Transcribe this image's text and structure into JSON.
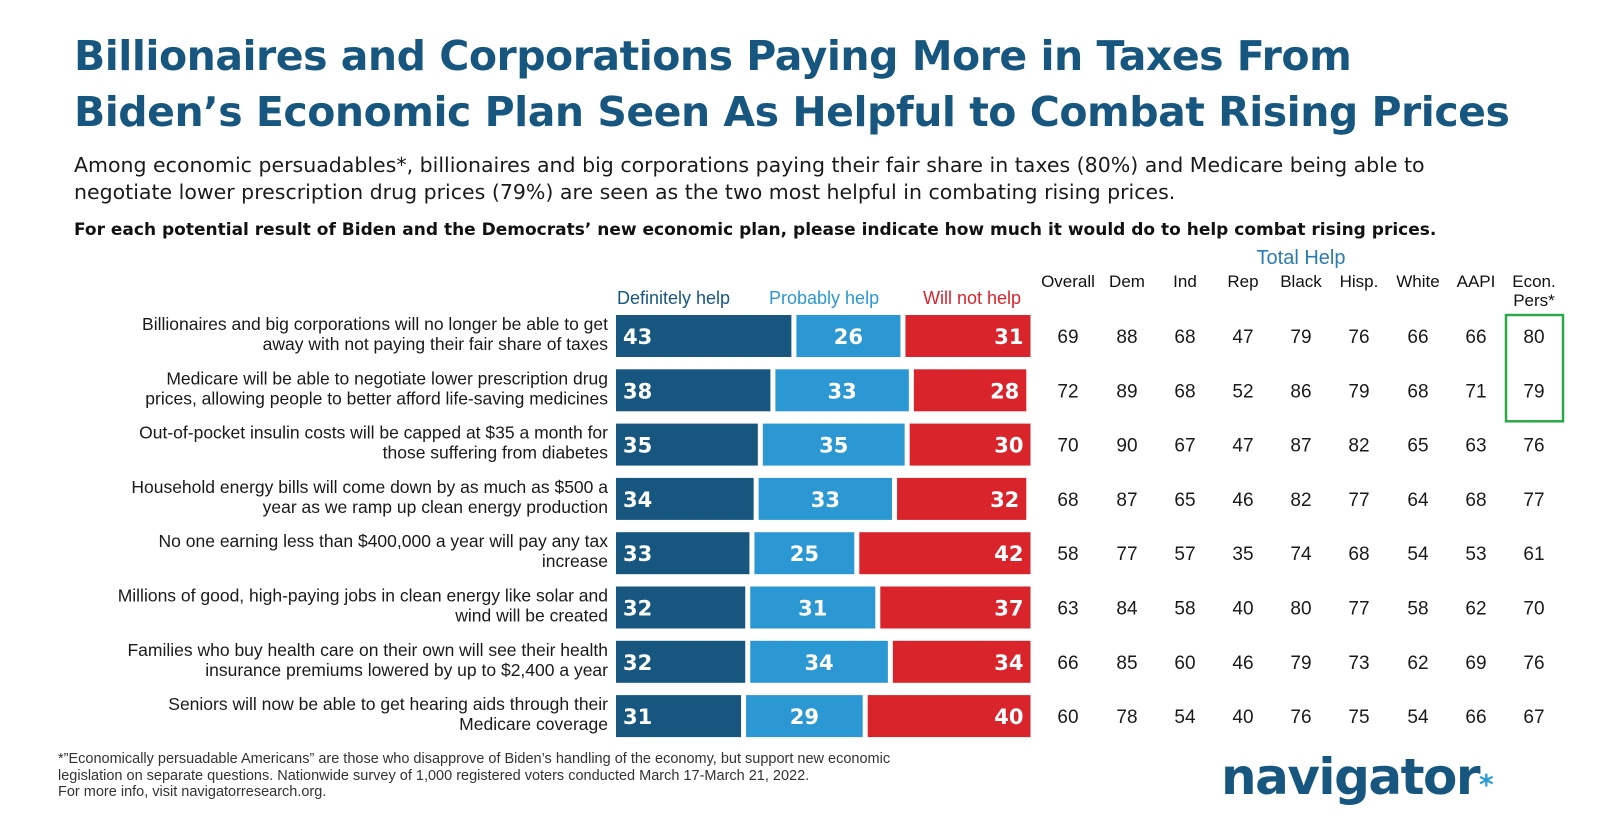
{
  "header": {
    "title_line1": "Billionaires and Corporations Paying More in Taxes From",
    "title_line2": "Biden’s Economic Plan Seen As Helpful to Combat Rising Prices",
    "subtitle_line1": "Among economic persuadables*, billionaires and big corporations paying their fair share in taxes (80%) and Medicare being able to",
    "subtitle_line2": "negotiate lower prescription drug prices (79%) are seen as the two most helpful in combating rising prices.",
    "question": "For each potential result of Biden and the Democrats’ new economic plan, please indicate how much it would do to help combat rising prices."
  },
  "chart_data": {
    "type": "bar",
    "stacked": true,
    "orientation": "horizontal",
    "categories": [
      [
        "Billionaires and big corporations will no longer be able to get",
        "away with not paying their fair share of taxes"
      ],
      [
        "Medicare will be able to negotiate lower prescription drug",
        "prices, allowing people to better afford life-saving medicines"
      ],
      [
        "Out-of-pocket insulin costs will be capped at $35 a month for",
        "those suffering from diabetes"
      ],
      [
        "Household energy bills will come down by as much as $500 a",
        "year as we ramp up clean energy production"
      ],
      [
        "No one earning less than $400,000 a year will pay any tax",
        "increase"
      ],
      [
        "Millions of good, high-paying jobs in clean energy like solar and",
        "wind will be created"
      ],
      [
        "Families who buy health care on their own will see their health",
        "insurance premiums lowered by up to $2,400 a year"
      ],
      [
        "Seniors will now be able to get hearing aids through their",
        "Medicare coverage"
      ]
    ],
    "series": [
      {
        "name": "Definitely help",
        "color": "#17577f",
        "values": [
          43,
          38,
          35,
          34,
          33,
          32,
          32,
          31
        ]
      },
      {
        "name": "Probably help",
        "color": "#2b98d3",
        "values": [
          26,
          33,
          35,
          33,
          25,
          31,
          34,
          29
        ]
      },
      {
        "name": "Will not help",
        "color": "#d9242b",
        "values": [
          31,
          28,
          30,
          32,
          42,
          37,
          34,
          40
        ]
      }
    ],
    "table": {
      "group_label": "Total Help",
      "columns": [
        "Overall",
        "Dem",
        "Ind",
        "Rep",
        "Black",
        "Hisp.",
        "White",
        "AAPI",
        "Econ. Pers*"
      ],
      "column_lines": [
        [
          "Overall"
        ],
        [
          "Dem"
        ],
        [
          "Ind"
        ],
        [
          "Rep"
        ],
        [
          "Black"
        ],
        [
          "Hisp."
        ],
        [
          "White"
        ],
        [
          "AAPI"
        ],
        [
          "Econ.",
          "Pers*"
        ]
      ],
      "rows": [
        [
          69,
          88,
          68,
          47,
          79,
          76,
          66,
          66,
          80
        ],
        [
          72,
          89,
          68,
          52,
          86,
          79,
          68,
          71,
          79
        ],
        [
          70,
          90,
          67,
          47,
          87,
          82,
          65,
          63,
          76
        ],
        [
          68,
          87,
          65,
          46,
          82,
          77,
          64,
          68,
          77
        ],
        [
          58,
          77,
          57,
          35,
          74,
          68,
          54,
          53,
          61
        ],
        [
          63,
          84,
          58,
          40,
          80,
          77,
          58,
          62,
          70
        ],
        [
          66,
          85,
          60,
          46,
          79,
          73,
          62,
          69,
          76
        ],
        [
          60,
          78,
          54,
          40,
          76,
          75,
          54,
          66,
          67
        ]
      ],
      "highlight": {
        "column": 8,
        "rows": [
          0,
          1
        ],
        "color": "#2aa84a"
      }
    }
  },
  "footnote": {
    "line1": "*”Economically persuadable Americans” are those who disapprove of Biden’s handling of the economy, but support new economic",
    "line2": "legislation on separate questions. Nationwide survey of 1,000 registered voters conducted March 17-March 21, 2022.",
    "line3": "For more info, visit navigatorresearch.org."
  },
  "logo": {
    "text": "navigator",
    "dot": "*"
  }
}
